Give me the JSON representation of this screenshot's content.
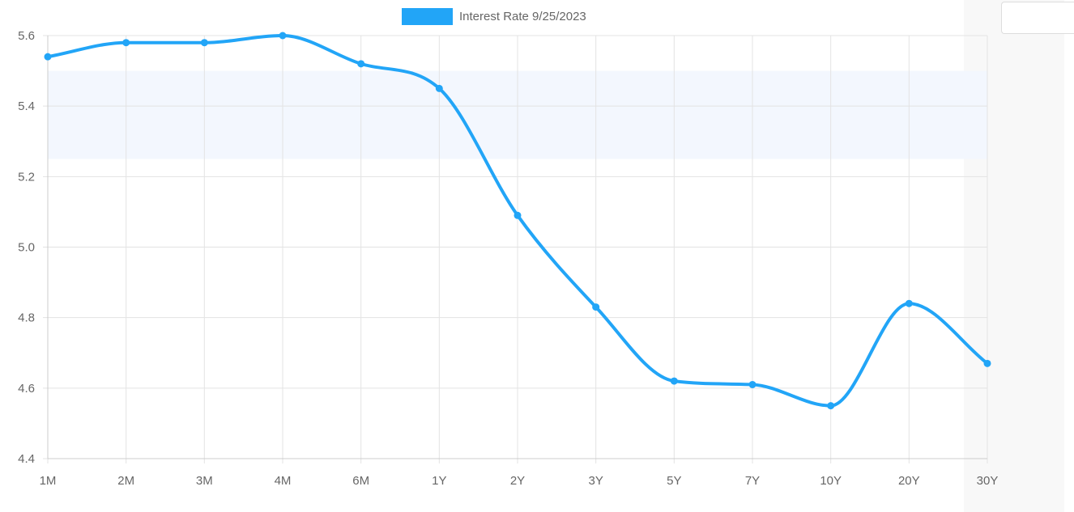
{
  "chart_data": {
    "type": "line",
    "categories": [
      "1M",
      "2M",
      "3M",
      "4M",
      "6M",
      "1Y",
      "2Y",
      "3Y",
      "5Y",
      "7Y",
      "10Y",
      "20Y",
      "30Y"
    ],
    "series": [
      {
        "name": "Interest Rate 9/25/2023",
        "values": [
          5.54,
          5.58,
          5.58,
          5.6,
          5.52,
          5.45,
          5.09,
          4.83,
          4.62,
          4.61,
          4.55,
          4.84,
          4.67
        ],
        "color": "#22a5f7"
      }
    ],
    "ylim": [
      4.4,
      5.6
    ],
    "yticks": [
      "4.4",
      "4.6",
      "4.8",
      "5.0",
      "5.2",
      "5.4",
      "5.6"
    ],
    "band": {
      "from": 5.25,
      "to": 5.5,
      "color": "#f3f7fe"
    },
    "grid": true,
    "legend": "top-center",
    "xlabel": "",
    "ylabel": ""
  }
}
